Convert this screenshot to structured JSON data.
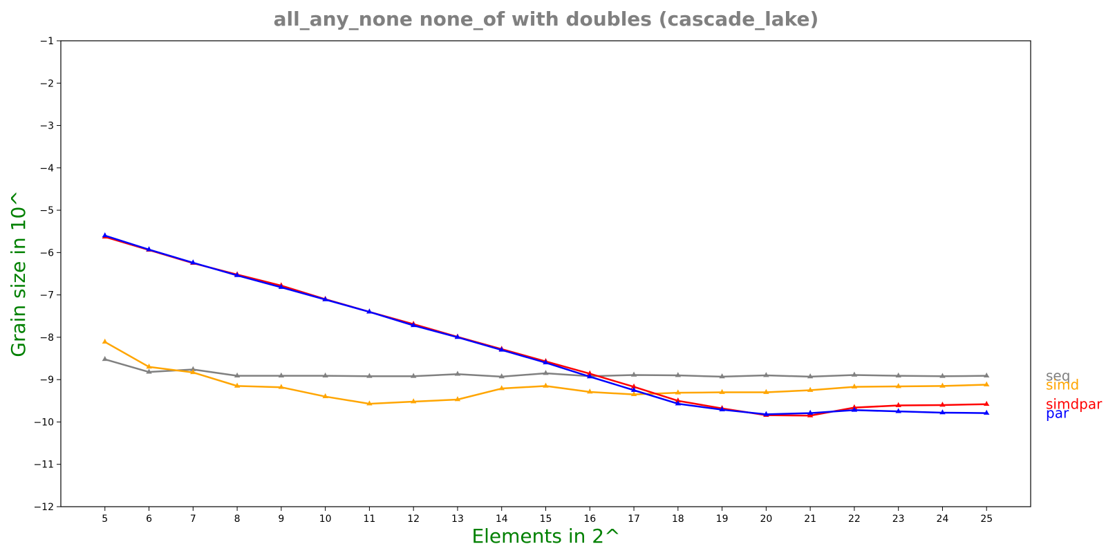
{
  "chart_data": {
    "type": "line",
    "title": "all_any_none none_of with doubles  (cascade_lake)",
    "xlabel": "Elements in 2^",
    "ylabel": "Grain size in 10^",
    "x": [
      5,
      6,
      7,
      8,
      9,
      10,
      11,
      12,
      13,
      14,
      15,
      16,
      17,
      18,
      19,
      20,
      21,
      22,
      23,
      24,
      25
    ],
    "xlim": [
      4,
      26
    ],
    "ylim": [
      -12,
      -1
    ],
    "yticks": [
      "−1",
      "−2",
      "−3",
      "−4",
      "−5",
      "−6",
      "−7",
      "−8",
      "−9",
      "−10",
      "−11",
      "−12"
    ],
    "ytick_values": [
      -1,
      -2,
      -3,
      -4,
      -5,
      -6,
      -7,
      -8,
      -9,
      -10,
      -11,
      -12
    ],
    "xticks": [
      "5",
      "6",
      "7",
      "8",
      "9",
      "10",
      "11",
      "12",
      "13",
      "14",
      "15",
      "16",
      "17",
      "18",
      "19",
      "20",
      "21",
      "22",
      "23",
      "24",
      "25"
    ],
    "grid": false,
    "legend": "right-of-plot, labels at series end",
    "series": [
      {
        "name": "seq",
        "color": "#808080",
        "values": [
          -8.52,
          -8.82,
          -8.76,
          -8.91,
          -8.91,
          -8.91,
          -8.92,
          -8.92,
          -8.87,
          -8.93,
          -8.85,
          -8.92,
          -8.89,
          -8.9,
          -8.93,
          -8.9,
          -8.93,
          -8.89,
          -8.91,
          -8.92,
          -8.91
        ]
      },
      {
        "name": "simd",
        "color": "#FFA500",
        "values": [
          -8.11,
          -8.7,
          -8.83,
          -9.15,
          -9.18,
          -9.4,
          -9.57,
          -9.52,
          -9.47,
          -9.21,
          -9.15,
          -9.29,
          -9.35,
          -9.31,
          -9.3,
          -9.3,
          -9.25,
          -9.17,
          -9.16,
          -9.15,
          -9.12
        ]
      },
      {
        "name": "simdpar",
        "color": "#FF0000",
        "values": [
          -5.63,
          -5.94,
          -6.25,
          -6.52,
          -6.78,
          -7.1,
          -7.4,
          -7.69,
          -7.99,
          -8.28,
          -8.57,
          -8.86,
          -9.17,
          -9.5,
          -9.68,
          -9.84,
          -9.85,
          -9.66,
          -9.61,
          -9.6,
          -9.58
        ]
      },
      {
        "name": "par",
        "color": "#0000FF",
        "values": [
          -5.6,
          -5.93,
          -6.24,
          -6.54,
          -6.82,
          -7.11,
          -7.4,
          -7.72,
          -8.0,
          -8.3,
          -8.6,
          -8.93,
          -9.25,
          -9.57,
          -9.71,
          -9.82,
          -9.79,
          -9.72,
          -9.75,
          -9.78,
          -9.79
        ]
      }
    ]
  }
}
